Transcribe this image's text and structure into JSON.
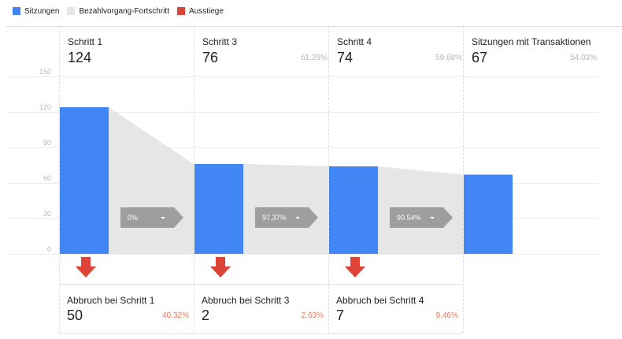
{
  "legend": [
    {
      "label": "Sitzungen",
      "color": "#4285f4"
    },
    {
      "label": "Bezahlvorgang-Fortschritt",
      "color": "#e6e6e6"
    },
    {
      "label": "Ausstiege",
      "color": "#db4437"
    }
  ],
  "steps": [
    {
      "label": "Schritt 1",
      "value": "124",
      "percent": ""
    },
    {
      "label": "Schritt 3",
      "value": "76",
      "percent": "61.29%"
    },
    {
      "label": "Schritt 4",
      "value": "74",
      "percent": "59.68%"
    },
    {
      "label": "Sitzungen mit Transaktionen",
      "value": "67",
      "percent": "54.03%"
    }
  ],
  "conversions": [
    {
      "label": "0%",
      "icon": "chevron-down-icon"
    },
    {
      "label": "97.37%",
      "icon": "chevron-down-icon"
    },
    {
      "label": "90.54%",
      "icon": "chevron-down-icon"
    }
  ],
  "dropoffs": [
    {
      "label": "Abbruch bei Schritt 1",
      "value": "50",
      "percent": "40.32%",
      "icon": "down-arrow-icon"
    },
    {
      "label": "Abbruch bei Schritt 3",
      "value": "2",
      "percent": "2.63%",
      "icon": "down-arrow-icon"
    },
    {
      "label": "Abbruch bei Schritt 4",
      "value": "7",
      "percent": "9.46%",
      "icon": "down-arrow-icon"
    }
  ],
  "chart_data": {
    "type": "bar",
    "categories": [
      "Schritt 1",
      "Schritt 3",
      "Schritt 4",
      "Sitzungen mit Transaktionen"
    ],
    "series": [
      {
        "name": "Sitzungen",
        "values": [
          124,
          76,
          74,
          67
        ]
      }
    ],
    "yticks": [
      0,
      30,
      60,
      90,
      120,
      150
    ],
    "ylim": [
      0,
      150
    ],
    "grid": true,
    "legend_position": "top-left",
    "colors": {
      "bar": "#4285f4",
      "progress": "#e6e6e6",
      "exit": "#db4437",
      "badge": "#9e9e9e"
    }
  }
}
